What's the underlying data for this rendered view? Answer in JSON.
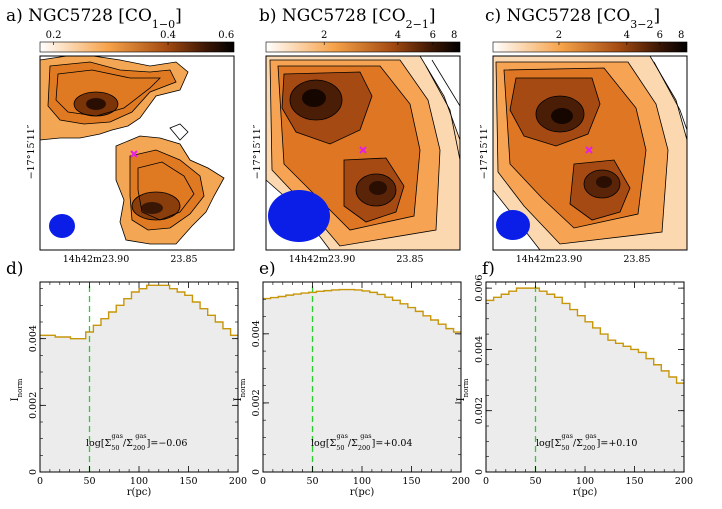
{
  "maps": [
    {
      "title": "a) NGC5728  [CO",
      "title_sub": "1−0",
      "title_end": "]",
      "colorbar_ticks": [
        {
          "label": "0.2",
          "frac": 0.07
        },
        {
          "label": "0.4",
          "frac": 0.66
        },
        {
          "label": "0.6",
          "frac": 0.96
        }
      ],
      "x_ticks": [
        "14h42m23.90",
        "23.85"
      ],
      "y_tick": "−17°15′11″",
      "beam_color": "#0a1ee8",
      "marker_color": "#e61ee6"
    },
    {
      "title": "b) NGC5728  [CO",
      "title_sub": "2−1",
      "title_end": "]",
      "colorbar_ticks": [
        {
          "label": "2",
          "frac": 0.3
        },
        {
          "label": "4",
          "frac": 0.68
        },
        {
          "label": "6",
          "frac": 0.86
        },
        {
          "label": "8",
          "frac": 0.97
        }
      ],
      "x_ticks": [
        "14h42m23.90",
        "23.85"
      ],
      "y_tick": "−17°15′11″",
      "beam_color": "#0a1ee8",
      "marker_color": "#e61ee6"
    },
    {
      "title": "c) NGC5728  [CO",
      "title_sub": "3−2",
      "title_end": "]",
      "colorbar_ticks": [
        {
          "label": "2",
          "frac": 0.34
        },
        {
          "label": "4",
          "frac": 0.69
        },
        {
          "label": "6",
          "frac": 0.86
        },
        {
          "label": "8",
          "frac": 0.97
        }
      ],
      "x_ticks": [
        "14h42m23.90",
        "23.85"
      ],
      "y_tick": "−17°15′11″",
      "beam_color": "#0a1ee8",
      "marker_color": "#e61ee6"
    }
  ],
  "chart_data": [
    {
      "type": "area",
      "panel": "d)",
      "xlabel": "r(pc)",
      "ylabel": "I",
      "ylabel_sub": "norm",
      "xlim": [
        0,
        200
      ],
      "ylim": [
        0,
        0.0057
      ],
      "x_ticks": [
        0,
        50,
        100,
        150,
        200
      ],
      "y_ticks": [
        "0",
        "0.002",
        "0.004"
      ],
      "y_tick_values": [
        0,
        0.002,
        0.004
      ],
      "vline_x": 50,
      "step_width": 7.7,
      "annotation_value": "=−0.06",
      "line_color": "#c8960a",
      "fill_color": "#ececec",
      "vline_color": "#2ecc2e",
      "values": [
        0.0041,
        0.0041,
        0.00405,
        0.00405,
        0.004,
        0.004,
        0.0042,
        0.0044,
        0.0046,
        0.0048,
        0.005,
        0.0052,
        0.0054,
        0.0055,
        0.0056,
        0.0056,
        0.0056,
        0.0055,
        0.0054,
        0.0053,
        0.0051,
        0.0049,
        0.0047,
        0.0045,
        0.0043,
        0.0041
      ]
    },
    {
      "type": "area",
      "panel": "e)",
      "xlabel": "r(pc)",
      "ylabel": "I",
      "ylabel_sub": "norm",
      "xlim": [
        0,
        200
      ],
      "ylim": [
        0,
        0.0055
      ],
      "x_ticks": [
        0,
        50,
        100,
        150,
        200
      ],
      "y_ticks": [
        "0",
        "0.002",
        "0.004"
      ],
      "y_tick_values": [
        0,
        0.002,
        0.004
      ],
      "vline_x": 50,
      "step_width": 7.7,
      "annotation_value": "=+0.04",
      "line_color": "#c8960a",
      "fill_color": "#ececec",
      "vline_color": "#2ecc2e",
      "values": [
        0.00502,
        0.00505,
        0.00508,
        0.00512,
        0.00515,
        0.00518,
        0.0052,
        0.00523,
        0.00525,
        0.00527,
        0.00528,
        0.00528,
        0.00527,
        0.00524,
        0.0052,
        0.00514,
        0.00506,
        0.00497,
        0.00487,
        0.00476,
        0.00465,
        0.00452,
        0.0044,
        0.00428,
        0.00415,
        0.00405
      ]
    },
    {
      "type": "area",
      "panel": "f)",
      "xlabel": "r(pc)",
      "ylabel": "I",
      "ylabel_sub": "norm",
      "xlim": [
        0,
        200
      ],
      "ylim": [
        0,
        0.0062
      ],
      "x_ticks": [
        0,
        50,
        100,
        150,
        200
      ],
      "y_ticks": [
        "0",
        "0.002",
        "0.004",
        "0.006"
      ],
      "y_tick_values": [
        0,
        0.002,
        0.004,
        0.006
      ],
      "vline_x": 50,
      "step_width": 7.7,
      "annotation_value": "=+0.10",
      "line_color": "#c8960a",
      "fill_color": "#ececec",
      "vline_color": "#2ecc2e",
      "values": [
        0.0056,
        0.0057,
        0.0058,
        0.0059,
        0.006,
        0.006,
        0.006,
        0.0059,
        0.0058,
        0.0057,
        0.0055,
        0.0053,
        0.0051,
        0.0049,
        0.0047,
        0.0045,
        0.0043,
        0.0042,
        0.0041,
        0.004,
        0.0039,
        0.0037,
        0.0035,
        0.0033,
        0.0031,
        0.0029
      ]
    }
  ]
}
